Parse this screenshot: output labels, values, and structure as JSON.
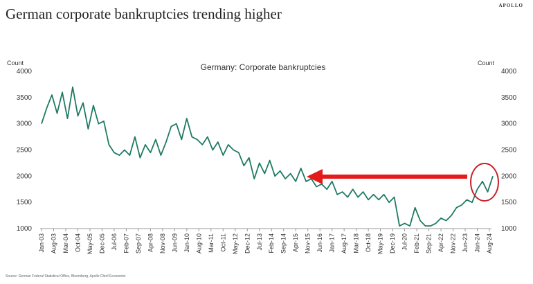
{
  "header": {
    "title": "German corporate bankruptcies trending higher",
    "brand": "APOLLO"
  },
  "footer": {
    "source": "Source: German Federal Statistical Office, Bloomberg, Apollo Chief Economist"
  },
  "chart_data": {
    "type": "line",
    "title": "Germany: Corporate bankruptcies",
    "ylabel_left": "Count",
    "ylabel_right": "Count",
    "ylim": [
      1000,
      4000
    ],
    "yticks": [
      1000,
      1500,
      2000,
      2500,
      3000,
      3500,
      4000
    ],
    "xticks": [
      "Jan-03",
      "Aug-03",
      "Mar-04",
      "Oct-04",
      "May-05",
      "Dec-05",
      "Jul-06",
      "Feb-07",
      "Sep-07",
      "Apr-08",
      "Nov-08",
      "Jun-09",
      "Jan-10",
      "Aug-10",
      "Mar-11",
      "Oct-11",
      "May-12",
      "Dec-12",
      "Jul-13",
      "Feb-14",
      "Sep-14",
      "Apr-15",
      "Nov-15",
      "Jun-16",
      "Jan-17",
      "Aug-17",
      "Mar-18",
      "Oct-18",
      "May-19",
      "Dec-19",
      "Jul-20",
      "Feb-21",
      "Sep-21",
      "Apr-22",
      "Nov-22",
      "Jun-23",
      "Jan-24",
      "Aug-24"
    ],
    "xtick_step_months": 7,
    "series": [
      {
        "name": "Corporate bankruptcies",
        "color": "#1f7a63",
        "start": "Jan-03",
        "step_months": 3,
        "values": [
          3000,
          3300,
          3550,
          3200,
          3600,
          3100,
          3700,
          3150,
          3400,
          2900,
          3350,
          3000,
          3050,
          2600,
          2450,
          2400,
          2500,
          2400,
          2750,
          2350,
          2600,
          2450,
          2700,
          2400,
          2650,
          2950,
          3000,
          2700,
          3100,
          2750,
          2700,
          2600,
          2750,
          2500,
          2650,
          2400,
          2600,
          2500,
          2450,
          2200,
          2350,
          1950,
          2250,
          2050,
          2300,
          2000,
          2100,
          1950,
          2050,
          1900,
          2150,
          1900,
          1950,
          1800,
          1850,
          1750,
          1900,
          1650,
          1700,
          1600,
          1750,
          1600,
          1700,
          1550,
          1650,
          1550,
          1650,
          1500,
          1600,
          1050,
          1100,
          1050,
          1400,
          1150,
          1050,
          1050,
          1100,
          1200,
          1150,
          1250,
          1400,
          1450,
          1550,
          1500,
          1750,
          1900,
          1700,
          2000
        ]
      }
    ],
    "annotations": [
      {
        "type": "arrow",
        "color": "#e31b1b",
        "from_value": 2000,
        "direction": "left",
        "to": "Nov-15"
      },
      {
        "type": "circle",
        "color": "#c8202a",
        "around": "Jan-24 to Aug-24"
      }
    ],
    "grid": false
  }
}
